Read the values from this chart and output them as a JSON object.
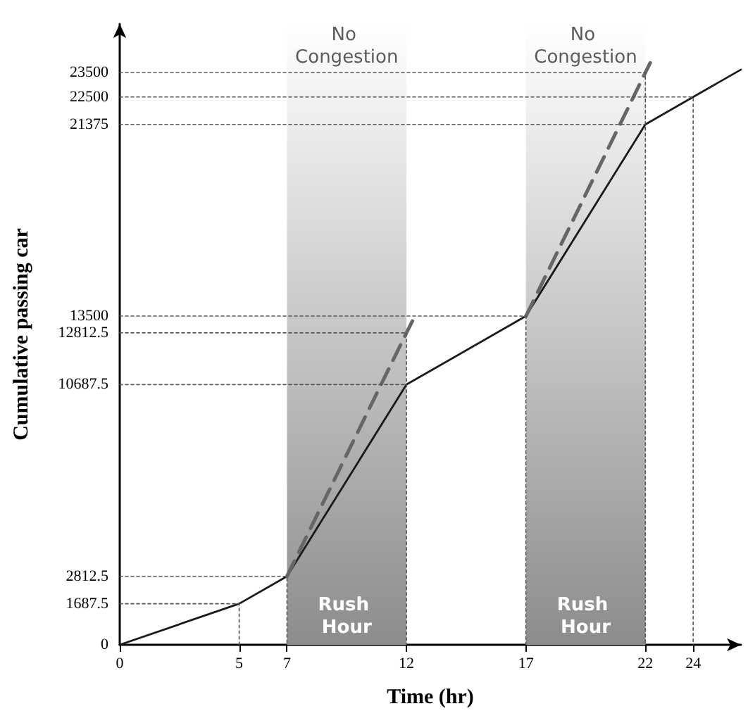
{
  "chart_data": {
    "type": "line",
    "xlabel": "Time (hr)",
    "ylabel": "Cumulative passing car",
    "xlim": [
      0,
      26
    ],
    "xticks": [
      0,
      5,
      7,
      12,
      17,
      22,
      24
    ],
    "ylim": [
      0,
      25500
    ],
    "yticks": [
      0,
      1687.5,
      2812.5,
      10687.5,
      12812.5,
      13500,
      21375,
      22500,
      23500
    ],
    "marker": "none",
    "series": [
      {
        "color": "#1a1a1a",
        "line_style": "solid",
        "x": [
          0,
          5,
          7,
          12,
          17,
          22,
          24,
          26
        ],
        "values": [
          0,
          1687.5,
          2812.5,
          10687.5,
          13500,
          21375,
          22500,
          23625
        ]
      },
      {
        "color": "#666666",
        "line_style": "dashed",
        "x": [
          7,
          12,
          12.3
        ],
        "values": [
          2812.5,
          12812.5,
          13400
        ]
      },
      {
        "color": "#666666",
        "line_style": "dashed",
        "x": [
          17,
          22,
          22.2
        ],
        "values": [
          13500,
          23500,
          23900
        ]
      },
      {
        "color": "#555555",
        "line_style": "dotted",
        "x": [
          0,
          5,
          5
        ],
        "values": [
          1687.5,
          1687.5,
          0
        ]
      },
      {
        "color": "#555555",
        "line_style": "dotted",
        "x": [
          0,
          7,
          7
        ],
        "values": [
          2812.5,
          2812.5,
          0
        ]
      },
      {
        "color": "#555555",
        "line_style": "dotted",
        "x": [
          0,
          12
        ],
        "values": [
          10687.5,
          10687.5
        ]
      },
      {
        "color": "#555555",
        "line_style": "dotted",
        "x": [
          0,
          12,
          12
        ],
        "values": [
          12812.5,
          12812.5,
          0
        ]
      },
      {
        "color": "#555555",
        "line_style": "dotted",
        "x": [
          0,
          17,
          17
        ],
        "values": [
          13500,
          13500,
          0
        ]
      },
      {
        "color": "#555555",
        "line_style": "dotted",
        "x": [
          0,
          22
        ],
        "values": [
          21375,
          21375
        ]
      },
      {
        "color": "#555555",
        "line_style": "dotted",
        "x": [
          0,
          22,
          22
        ],
        "values": [
          23500,
          23500,
          0
        ]
      },
      {
        "color": "#555555",
        "line_style": "dotted",
        "x": [
          0,
          24,
          24
        ],
        "values": [
          22500,
          22500,
          0
        ]
      }
    ],
    "bands": [
      {
        "axis": "x",
        "from": 7,
        "to": 12,
        "label": "Rush Hour",
        "color": "#8c8c8c"
      },
      {
        "axis": "x",
        "from": 17,
        "to": 22,
        "label": "Rush Hour",
        "color": "#8c8c8c"
      }
    ],
    "annotations": [
      "No Congestion",
      "No Congestion"
    ]
  }
}
